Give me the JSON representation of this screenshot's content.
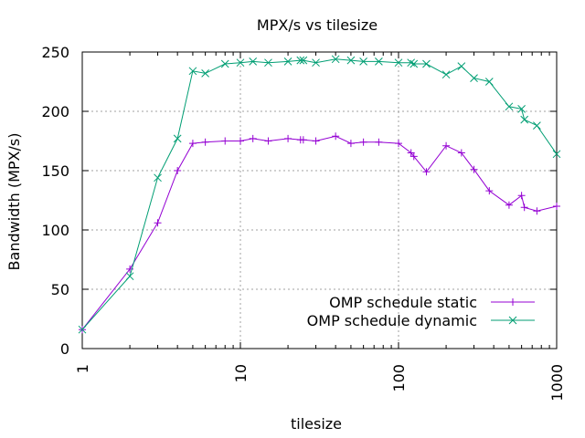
{
  "chart_data": {
    "type": "line",
    "title": "MPX/s vs tilesize",
    "xlabel": "tilesize",
    "ylabel": "Bandwidth (MPX/s)",
    "xscale": "log",
    "xlim": [
      1,
      1000
    ],
    "ylim": [
      0,
      250
    ],
    "xticks": [
      1,
      10,
      100,
      1000
    ],
    "xtick_labels": [
      "1",
      "10",
      "100",
      "1000"
    ],
    "yticks": [
      0,
      50,
      100,
      150,
      200,
      250
    ],
    "ytick_labels": [
      "0",
      "50",
      "100",
      "150",
      "200",
      "250"
    ],
    "grid": true,
    "legend_position": "bottom-right",
    "series": [
      {
        "name": "OMP schedule static",
        "color": "#9400d3",
        "marker": "plus",
        "x": [
          1,
          2,
          3,
          4,
          5,
          6,
          8,
          10,
          12,
          15,
          20,
          24,
          25,
          30,
          40,
          50,
          60,
          75,
          100,
          120,
          125,
          150,
          200,
          250,
          300,
          375,
          500,
          600,
          625,
          750,
          1000
        ],
        "y": [
          16,
          67,
          106,
          150,
          173,
          174,
          175,
          175,
          177,
          175,
          177,
          176,
          176,
          175,
          179,
          173,
          174,
          174,
          173,
          165,
          162,
          149,
          171,
          165,
          151,
          133,
          121,
          129,
          119,
          116,
          120
        ]
      },
      {
        "name": "OMP schedule dynamic",
        "color": "#009e73",
        "marker": "cross",
        "x": [
          1,
          2,
          3,
          4,
          5,
          6,
          8,
          10,
          12,
          15,
          20,
          24,
          25,
          30,
          40,
          50,
          60,
          75,
          100,
          120,
          125,
          150,
          200,
          250,
          300,
          375,
          500,
          600,
          625,
          750,
          1000
        ],
        "y": [
          16,
          61,
          144,
          177,
          234,
          232,
          240,
          241,
          242,
          241,
          242,
          243,
          243,
          241,
          244,
          243,
          242,
          242,
          241,
          241,
          240,
          240,
          231,
          238,
          228,
          225,
          204,
          202,
          193,
          188,
          164
        ]
      }
    ]
  }
}
